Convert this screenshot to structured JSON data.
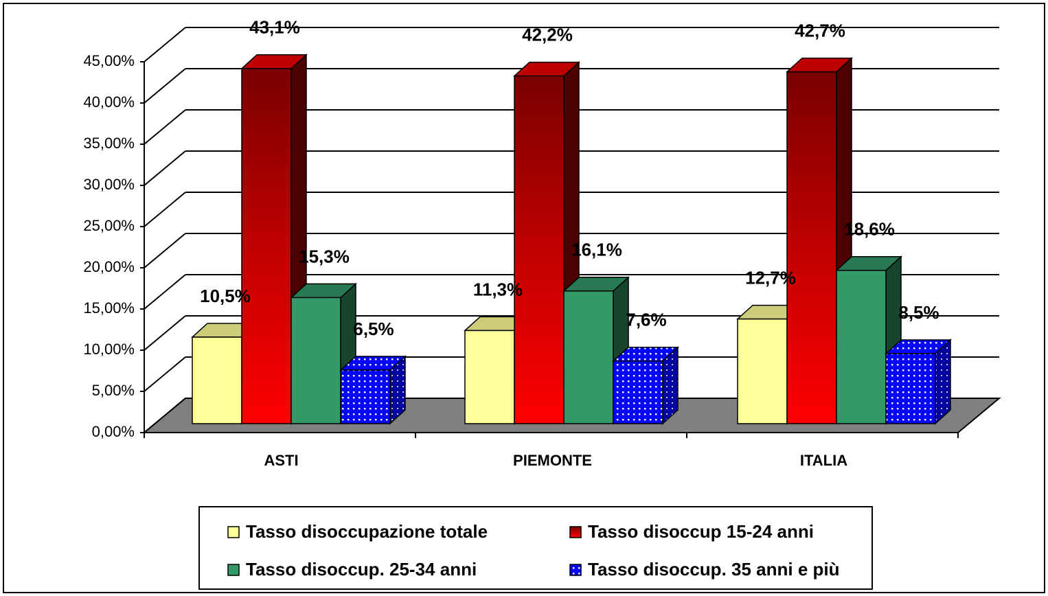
{
  "chart_data": {
    "type": "bar3d",
    "categories": [
      "ASTI",
      "PIEMONTE",
      "ITALIA"
    ],
    "series": [
      {
        "name": "Tasso disoccupazione totale",
        "color": "#ffff99",
        "fill_style": "solid",
        "values": [
          10.5,
          11.3,
          12.7
        ],
        "value_labels": [
          "10,5%",
          "11,3%",
          "12,7%"
        ]
      },
      {
        "name": "Tasso disoccup 15-24 anni",
        "color": "#ff0000",
        "fill_style": "gradient",
        "values": [
          43.1,
          42.2,
          42.7
        ],
        "value_labels": [
          "43,1%",
          "42,2%",
          "42,7%"
        ]
      },
      {
        "name": "Tasso disoccup. 25-34 anni",
        "color": "#339966",
        "fill_style": "solid",
        "values": [
          15.3,
          16.1,
          18.6
        ],
        "value_labels": [
          "15,3%",
          "16,1%",
          "18,6%"
        ]
      },
      {
        "name": "Tasso disoccup. 35 anni e più",
        "color": "#0000ff",
        "fill_style": "dots",
        "values": [
          6.5,
          7.6,
          8.5
        ],
        "value_labels": [
          "6,5%",
          "7,6%",
          "8,5%"
        ]
      }
    ],
    "ylim": [
      0,
      45
    ],
    "yticks": [
      {
        "value": 0,
        "label": "0,00%"
      },
      {
        "value": 5,
        "label": "5,00%"
      },
      {
        "value": 10,
        "label": "10,00%"
      },
      {
        "value": 15,
        "label": "15,00%"
      },
      {
        "value": 20,
        "label": "20,00%"
      },
      {
        "value": 25,
        "label": "25,00%"
      },
      {
        "value": 30,
        "label": "30,00%"
      },
      {
        "value": 35,
        "label": "35,00%"
      },
      {
        "value": 40,
        "label": "40,00%"
      },
      {
        "value": 45,
        "label": "45,00%"
      }
    ],
    "grid": true
  }
}
